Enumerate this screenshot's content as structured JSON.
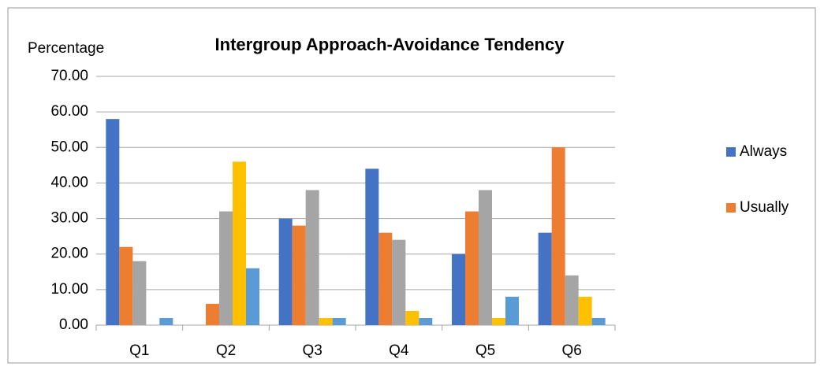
{
  "chart_data": {
    "type": "bar",
    "title": "Intergroup Approach-Avoidance Tendency",
    "y_label": "Percentage",
    "categories": [
      "Q1",
      "Q2",
      "Q3",
      "Q4",
      "Q5",
      "Q6"
    ],
    "series": [
      {
        "name": "Always",
        "color": "#4472c4",
        "values": [
          58,
          0,
          30,
          44,
          20,
          26
        ]
      },
      {
        "name": "Usually",
        "color": "#ed7d31",
        "values": [
          22,
          6,
          28,
          26,
          32,
          50
        ]
      },
      {
        "color": "#a5a5a5",
        "values": [
          18,
          32,
          38,
          24,
          38,
          14
        ]
      },
      {
        "color": "#ffc000",
        "values": [
          0,
          46,
          2,
          4,
          2,
          8
        ]
      },
      {
        "color": "#5b9bd5",
        "values": [
          2,
          16,
          2,
          2,
          8,
          2
        ]
      }
    ],
    "ylim": [
      0,
      70
    ],
    "yticks": [
      {
        "value": 0,
        "label": "0.00"
      },
      {
        "value": 10,
        "label": "10.00"
      },
      {
        "value": 20,
        "label": "20.00"
      },
      {
        "value": 30,
        "label": "30.00"
      },
      {
        "value": 40,
        "label": "40.00"
      },
      {
        "value": 50,
        "label": "50.00"
      },
      {
        "value": 60,
        "label": "60.00"
      },
      {
        "value": 70,
        "label": "70.00"
      }
    ],
    "grid": true,
    "legend": "right"
  }
}
